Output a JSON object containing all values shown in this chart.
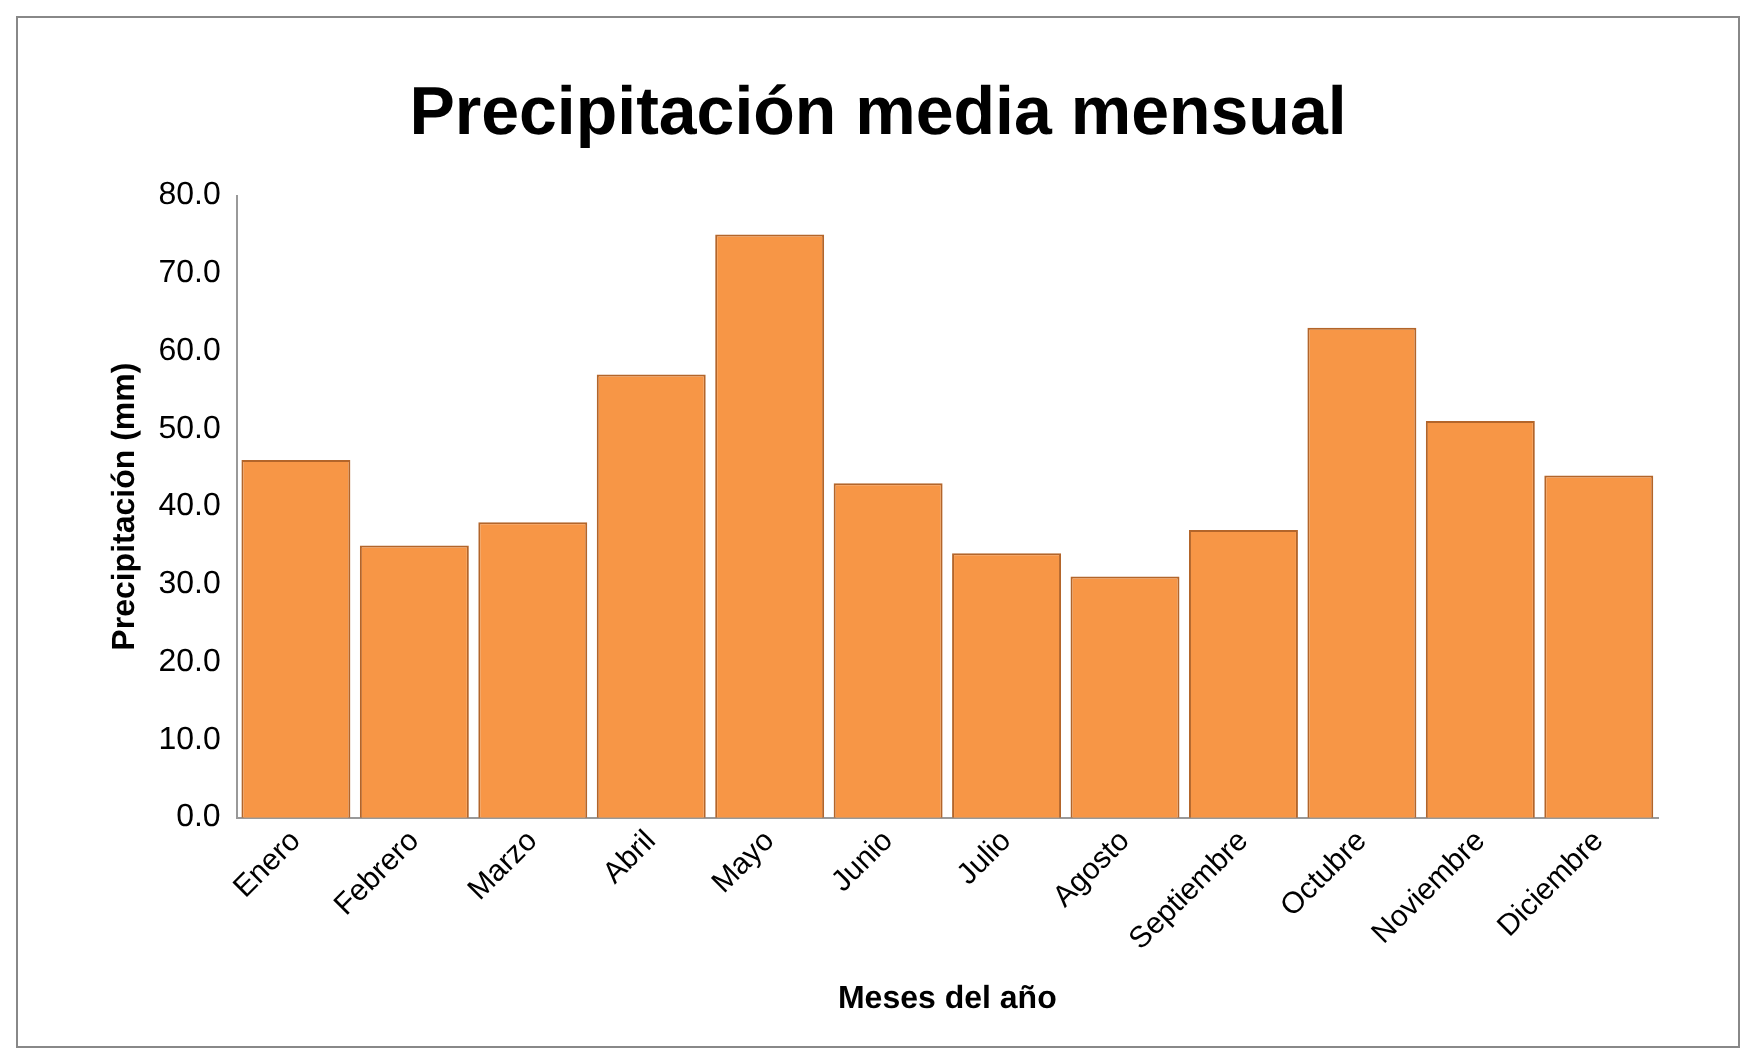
{
  "chart_data": {
    "type": "bar",
    "title": "Precipitación media mensual",
    "xlabel": "Meses del año",
    "ylabel": "Precipitación (mm)",
    "categories": [
      "Enero",
      "Febrero",
      "Marzo",
      "Abril",
      "Mayo",
      "Junio",
      "Julio",
      "Agosto",
      "Septiembre",
      "Octubre",
      "Noviembre",
      "Diciembre"
    ],
    "values": [
      46,
      35,
      38,
      57,
      75,
      43,
      34,
      31,
      37,
      63,
      51,
      44
    ],
    "color": "#f79646",
    "ylim": [
      0,
      80
    ],
    "yticks": [
      {
        "value": 0,
        "label": "0.0"
      },
      {
        "value": 10,
        "label": "10.0"
      },
      {
        "value": 20,
        "label": "20.0"
      },
      {
        "value": 30,
        "label": "30.0"
      },
      {
        "value": 40,
        "label": "40.0"
      },
      {
        "value": 50,
        "label": "50.0"
      },
      {
        "value": 60,
        "label": "60.0"
      },
      {
        "value": 70,
        "label": "70.0"
      },
      {
        "value": 80,
        "label": "80.0"
      }
    ],
    "grid": false,
    "legend": false
  }
}
